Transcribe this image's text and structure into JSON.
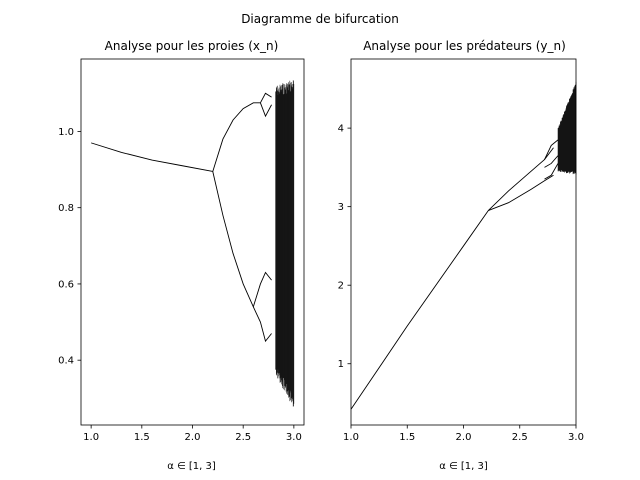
{
  "figure": {
    "suptitle": "Diagramme de bifurcation"
  },
  "chart_data": [
    {
      "type": "scatter",
      "title": "Analyse pour les proies (x_n)",
      "xlabel": "α ∈ [1, 3]",
      "ylabel": "",
      "xlim": [
        0.9,
        3.1
      ],
      "ylim": [
        0.23,
        1.19
      ],
      "xticks": [
        1.0,
        1.5,
        2.0,
        2.5,
        3.0
      ],
      "xtick_labels": [
        "1.0",
        "1.5",
        "2.0",
        "2.5",
        "3.0"
      ],
      "yticks": [
        0.4,
        0.6,
        0.8,
        1.0
      ],
      "ytick_labels": [
        "0.4",
        "0.6",
        "0.8",
        "1.0"
      ],
      "grid": false,
      "marker_color": "#000000",
      "branches": [
        {
          "x": [
            1.0,
            1.3,
            1.6,
            1.9,
            2.2
          ],
          "y": [
            0.97,
            0.945,
            0.925,
            0.91,
            0.895
          ]
        },
        {
          "x": [
            2.2,
            2.3,
            2.4,
            2.5,
            2.6,
            2.67
          ],
          "y": [
            0.895,
            0.98,
            1.03,
            1.06,
            1.075,
            1.075
          ]
        },
        {
          "x": [
            2.2,
            2.3,
            2.4,
            2.5,
            2.6
          ],
          "y": [
            0.895,
            0.78,
            0.68,
            0.6,
            0.54
          ]
        },
        {
          "x": [
            2.67,
            2.72,
            2.78
          ],
          "y": [
            1.075,
            1.1,
            1.09
          ]
        },
        {
          "x": [
            2.67,
            2.72,
            2.78
          ],
          "y": [
            1.075,
            1.04,
            1.07
          ]
        },
        {
          "x": [
            2.6,
            2.67,
            2.72,
            2.78
          ],
          "y": [
            0.54,
            0.6,
            0.63,
            0.61
          ]
        },
        {
          "x": [
            2.6,
            2.67,
            2.72,
            2.78
          ],
          "y": [
            0.54,
            0.5,
            0.45,
            0.47
          ]
        }
      ],
      "chaos": {
        "x_start": 2.82,
        "x_end": 3.0,
        "y_low_start": 0.36,
        "y_low_end": 0.27,
        "y_high_start": 1.12,
        "y_high_end": 1.14
      }
    },
    {
      "type": "scatter",
      "title": "Analyse pour les prédateurs (y_n)",
      "xlabel": "α ∈ [1, 3]",
      "ylabel": "",
      "xlim": [
        1.0,
        3.0
      ],
      "ylim": [
        0.22,
        4.88
      ],
      "xticks": [
        1.0,
        1.5,
        2.0,
        2.5,
        3.0
      ],
      "xtick_labels": [
        "1.0",
        "1.5",
        "2.0",
        "2.5",
        "3.0"
      ],
      "yticks": [
        1,
        2,
        3,
        4
      ],
      "ytick_labels": [
        "1",
        "2",
        "3",
        "4"
      ],
      "grid": false,
      "marker_color": "#000000",
      "branches": [
        {
          "x": [
            1.0,
            1.5,
            2.0,
            2.22
          ],
          "y": [
            0.42,
            1.48,
            2.5,
            2.95
          ]
        },
        {
          "x": [
            2.22,
            2.4,
            2.6,
            2.72,
            2.8
          ],
          "y": [
            2.95,
            3.2,
            3.45,
            3.6,
            3.75
          ]
        },
        {
          "x": [
            2.22,
            2.4,
            2.6,
            2.72,
            2.8
          ],
          "y": [
            2.95,
            3.05,
            3.22,
            3.33,
            3.4
          ]
        },
        {
          "x": [
            2.72,
            2.78,
            2.84
          ],
          "y": [
            3.6,
            3.78,
            3.85
          ]
        },
        {
          "x": [
            2.72,
            2.78,
            2.84
          ],
          "y": [
            3.5,
            3.55,
            3.65
          ]
        },
        {
          "x": [
            2.72,
            2.78,
            2.84
          ],
          "y": [
            3.35,
            3.4,
            3.55
          ]
        }
      ],
      "chaos": {
        "x_start": 2.84,
        "x_end": 3.0,
        "y_low_start": 3.45,
        "y_low_end": 3.4,
        "y_high_start": 4.0,
        "y_high_end": 4.6
      }
    }
  ]
}
